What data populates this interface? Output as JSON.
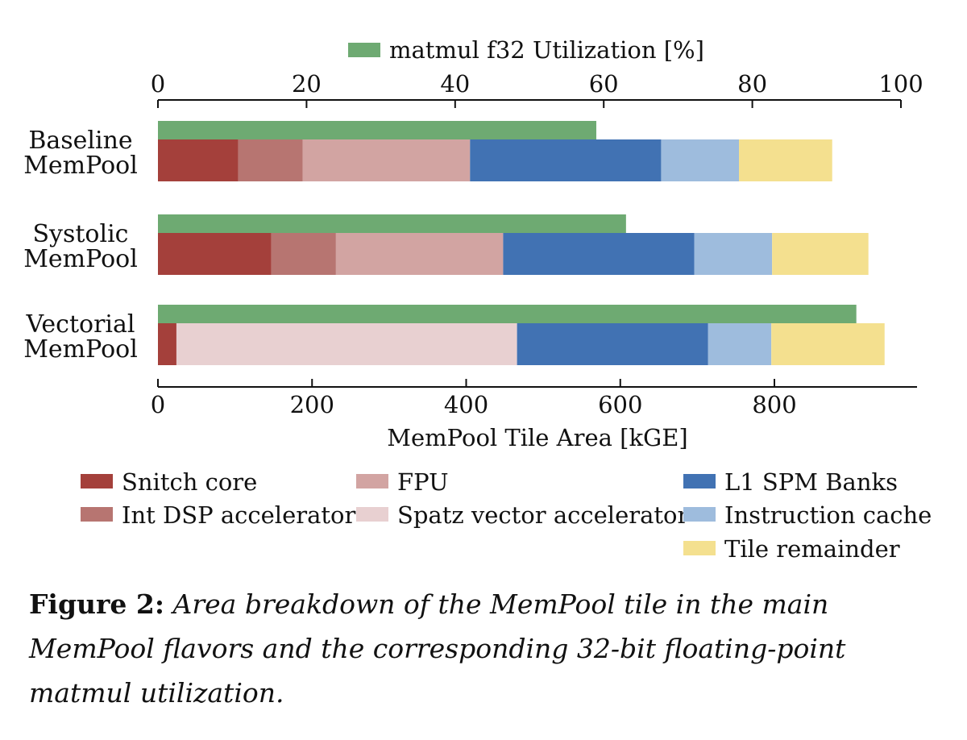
{
  "chart_data": {
    "type": "bar",
    "orientation": "horizontal",
    "stacked": true,
    "categories": [
      [
        "Baseline",
        "MemPool"
      ],
      [
        "Systolic",
        "MemPool"
      ],
      [
        "Vectorial",
        "MemPool"
      ]
    ],
    "area_axis": {
      "label": "MemPool Tile Area [kGE]",
      "position": "bottom",
      "range": [
        0,
        985
      ],
      "ticks": [
        0,
        200,
        400,
        600,
        800
      ]
    },
    "util_axis": {
      "position": "top",
      "range": [
        0,
        100
      ],
      "ticks": [
        0,
        20,
        40,
        60,
        80,
        100
      ]
    },
    "series": [
      {
        "name": "Snitch core",
        "color": "#a4403b",
        "values": [
          104,
          147,
          24
        ]
      },
      {
        "name": "Int DSP accelerator",
        "color": "#b77571",
        "values": [
          84,
          84,
          0
        ]
      },
      {
        "name": "FPU",
        "color": "#d2a4a2",
        "values": [
          217,
          217,
          0
        ]
      },
      {
        "name": "Spatz vector accelerator",
        "color": "#e8d0d1",
        "values": [
          0,
          0,
          442
        ]
      },
      {
        "name": "L1 SPM Banks",
        "color": "#4172b3",
        "values": [
          248,
          248,
          248
        ]
      },
      {
        "name": "Instruction cache",
        "color": "#9ebcdd",
        "values": [
          101,
          101,
          82
        ]
      },
      {
        "name": "Tile remainder",
        "color": "#f4e08f",
        "values": [
          121,
          125,
          147
        ]
      }
    ],
    "utilization": {
      "name": "matmul f32 Utilization [%]",
      "color": "#6eaa72",
      "values": [
        59,
        63,
        94
      ]
    },
    "legend_placement": "top for utilization, bottom for area components",
    "grid": false
  },
  "caption": {
    "label": "Figure 2:",
    "text": "Area breakdown of the MemPool tile in the main MemPool flavors and the corresponding 32-bit floating-point matmul utilization."
  }
}
